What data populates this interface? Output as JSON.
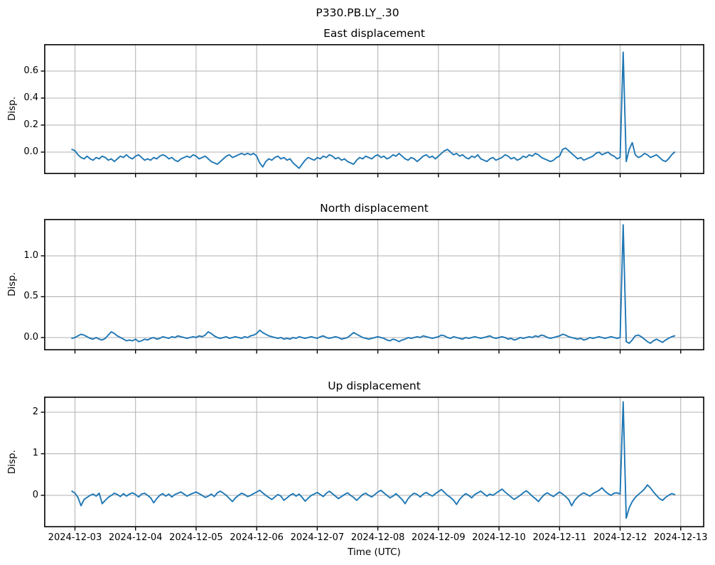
{
  "figure": {
    "suptitle": "P330.PB.LY_.30",
    "background": "#ffffff",
    "line_color": "#1f77b4",
    "grid_color": "#b0b0b0",
    "spine_color": "#000000"
  },
  "x_axis": {
    "xlabel": "Time (UTC)",
    "xlim": [
      -0.51,
      10.39
    ],
    "xticks": [
      0,
      1,
      2,
      3,
      4,
      5,
      6,
      7,
      8,
      9,
      10
    ],
    "xtick_labels": [
      "2024-12-03",
      "2024-12-04",
      "2024-12-05",
      "2024-12-06",
      "2024-12-07",
      "2024-12-08",
      "2024-12-09",
      "2024-12-10",
      "2024-12-11",
      "2024-12-12",
      "2024-12-13"
    ],
    "units": "days after 2024-12-03 00:00 UTC"
  },
  "chart_data": [
    {
      "type": "line",
      "title": "East displacement",
      "ylabel": "Disp.",
      "ylim": [
        -0.163,
        0.8
      ],
      "yticks": [
        0.0,
        0.2,
        0.4,
        0.6
      ],
      "ytick_labels": [
        "0.0",
        "0.2",
        "0.4",
        "0.6"
      ],
      "grid": true,
      "series": {
        "name": "east",
        "t0": -0.05,
        "dt_days": 0.05,
        "spike": {
          "t": 9.05,
          "value": 0.74
        },
        "values": [
          0.02,
          0.01,
          -0.02,
          -0.04,
          -0.05,
          -0.03,
          -0.05,
          -0.06,
          -0.04,
          -0.05,
          -0.03,
          -0.04,
          -0.06,
          -0.05,
          -0.07,
          -0.05,
          -0.03,
          -0.04,
          -0.02,
          -0.04,
          -0.05,
          -0.03,
          -0.02,
          -0.04,
          -0.06,
          -0.05,
          -0.06,
          -0.04,
          -0.05,
          -0.03,
          -0.02,
          -0.03,
          -0.05,
          -0.04,
          -0.06,
          -0.07,
          -0.05,
          -0.04,
          -0.03,
          -0.04,
          -0.02,
          -0.03,
          -0.05,
          -0.04,
          -0.03,
          -0.05,
          -0.07,
          -0.08,
          -0.09,
          -0.07,
          -0.05,
          -0.03,
          -0.02,
          -0.04,
          -0.03,
          -0.02,
          -0.01,
          -0.02,
          -0.01,
          -0.02,
          -0.01,
          -0.03,
          -0.08,
          -0.11,
          -0.07,
          -0.05,
          -0.06,
          -0.04,
          -0.03,
          -0.05,
          -0.04,
          -0.06,
          -0.05,
          -0.08,
          -0.1,
          -0.12,
          -0.09,
          -0.06,
          -0.04,
          -0.05,
          -0.06,
          -0.04,
          -0.05,
          -0.03,
          -0.04,
          -0.02,
          -0.03,
          -0.05,
          -0.04,
          -0.06,
          -0.05,
          -0.07,
          -0.08,
          -0.09,
          -0.06,
          -0.04,
          -0.05,
          -0.03,
          -0.04,
          -0.05,
          -0.03,
          -0.02,
          -0.04,
          -0.03,
          -0.05,
          -0.04,
          -0.02,
          -0.03,
          -0.01,
          -0.03,
          -0.05,
          -0.06,
          -0.04,
          -0.05,
          -0.07,
          -0.05,
          -0.03,
          -0.02,
          -0.04,
          -0.03,
          -0.05,
          -0.03,
          -0.01,
          0.01,
          0.02,
          0.0,
          -0.02,
          -0.01,
          -0.03,
          -0.02,
          -0.04,
          -0.05,
          -0.03,
          -0.04,
          -0.02,
          -0.05,
          -0.06,
          -0.07,
          -0.05,
          -0.04,
          -0.06,
          -0.05,
          -0.04,
          -0.02,
          -0.03,
          -0.05,
          -0.04,
          -0.06,
          -0.05,
          -0.03,
          -0.04,
          -0.02,
          -0.03,
          -0.01,
          -0.02,
          -0.04,
          -0.05,
          -0.06,
          -0.07,
          -0.06,
          -0.04,
          -0.03,
          0.02,
          0.03,
          0.01,
          -0.01,
          -0.03,
          -0.05,
          -0.04,
          -0.06,
          -0.05,
          -0.04,
          -0.03,
          -0.01,
          0.0,
          -0.02,
          -0.01,
          0.0,
          -0.02,
          -0.03,
          -0.05,
          -0.04,
          0.74,
          -0.07,
          0.02,
          0.07,
          -0.02,
          -0.04,
          -0.03,
          -0.01,
          -0.02,
          -0.04,
          -0.03,
          -0.02,
          -0.04,
          -0.06,
          -0.07,
          -0.05,
          -0.02,
          0.0
        ]
      }
    },
    {
      "type": "line",
      "title": "North displacement",
      "ylabel": "Disp.",
      "ylim": [
        -0.157,
        1.452
      ],
      "yticks": [
        0.0,
        0.5,
        1.0
      ],
      "ytick_labels": [
        "0.0",
        "0.5",
        "1.0"
      ],
      "grid": true,
      "series": {
        "name": "north",
        "t0": -0.05,
        "dt_days": 0.05,
        "spike": {
          "t": 9.05,
          "value": 1.38
        },
        "values": [
          -0.01,
          0.0,
          0.02,
          0.04,
          0.03,
          0.01,
          -0.01,
          -0.02,
          0.0,
          -0.02,
          -0.03,
          -0.01,
          0.03,
          0.07,
          0.05,
          0.02,
          0.0,
          -0.02,
          -0.04,
          -0.03,
          -0.04,
          -0.02,
          -0.05,
          -0.04,
          -0.02,
          -0.03,
          -0.01,
          0.0,
          -0.02,
          -0.01,
          0.01,
          0.0,
          -0.01,
          0.01,
          0.0,
          0.02,
          0.01,
          0.0,
          -0.01,
          0.0,
          0.01,
          0.0,
          0.02,
          0.01,
          0.03,
          0.07,
          0.05,
          0.02,
          0.0,
          -0.01,
          0.0,
          0.01,
          -0.01,
          0.0,
          0.01,
          0.0,
          -0.01,
          0.01,
          0.0,
          0.02,
          0.03,
          0.05,
          0.09,
          0.06,
          0.04,
          0.02,
          0.01,
          0.0,
          -0.01,
          0.0,
          -0.02,
          -0.01,
          -0.02,
          0.0,
          -0.01,
          0.01,
          0.0,
          -0.01,
          0.0,
          0.01,
          0.0,
          -0.01,
          0.01,
          0.02,
          0.0,
          -0.01,
          0.0,
          0.01,
          0.0,
          -0.02,
          -0.01,
          0.0,
          0.03,
          0.06,
          0.04,
          0.02,
          0.0,
          -0.01,
          -0.02,
          -0.01,
          0.0,
          0.01,
          0.0,
          -0.01,
          -0.03,
          -0.04,
          -0.02,
          -0.03,
          -0.05,
          -0.03,
          -0.02,
          0.0,
          -0.01,
          0.0,
          0.01,
          0.0,
          0.02,
          0.01,
          0.0,
          -0.01,
          0.0,
          0.01,
          0.03,
          0.02,
          0.0,
          -0.01,
          0.01,
          0.0,
          -0.01,
          -0.02,
          0.0,
          -0.01,
          0.0,
          0.01,
          0.0,
          -0.01,
          0.0,
          0.01,
          0.02,
          0.0,
          -0.01,
          0.0,
          0.01,
          0.0,
          -0.02,
          -0.01,
          -0.03,
          -0.02,
          0.0,
          -0.01,
          0.0,
          0.01,
          0.0,
          0.02,
          0.01,
          0.03,
          0.02,
          0.0,
          -0.01,
          0.0,
          0.01,
          0.02,
          0.04,
          0.03,
          0.01,
          0.0,
          -0.01,
          -0.02,
          -0.01,
          -0.03,
          -0.02,
          0.0,
          -0.01,
          0.0,
          0.01,
          0.0,
          -0.01,
          0.0,
          0.01,
          0.0,
          -0.01,
          0.0,
          1.38,
          -0.05,
          -0.07,
          -0.03,
          0.02,
          0.03,
          0.01,
          -0.02,
          -0.05,
          -0.07,
          -0.04,
          -0.02,
          -0.04,
          -0.06,
          -0.03,
          -0.01,
          0.01,
          0.02
        ]
      }
    },
    {
      "type": "line",
      "title": "Up displacement",
      "ylabel": "Disp.",
      "ylim": [
        -0.77,
        2.376
      ],
      "yticks": [
        0,
        1,
        2
      ],
      "ytick_labels": [
        "0",
        "1",
        "2"
      ],
      "grid": true,
      "series": {
        "name": "up",
        "t0": -0.05,
        "dt_days": 0.05,
        "spike": {
          "t": 9.05,
          "value": 2.25,
          "low": -0.55
        },
        "values": [
          0.1,
          0.05,
          -0.05,
          -0.25,
          -0.1,
          -0.05,
          0.0,
          0.03,
          -0.02,
          0.05,
          -0.2,
          -0.12,
          -0.05,
          0.0,
          0.05,
          0.02,
          -0.03,
          0.04,
          -0.02,
          0.03,
          0.06,
          0.02,
          -0.04,
          0.03,
          0.05,
          0.0,
          -0.06,
          -0.18,
          -0.08,
          0.0,
          0.04,
          -0.02,
          0.03,
          -0.04,
          0.02,
          0.05,
          0.08,
          0.03,
          -0.02,
          0.02,
          0.05,
          0.08,
          0.04,
          0.0,
          -0.05,
          -0.02,
          0.03,
          -0.03,
          0.06,
          0.1,
          0.05,
          0.0,
          -0.08,
          -0.15,
          -0.06,
          0.0,
          0.05,
          0.02,
          -0.03,
          0.0,
          0.04,
          0.08,
          0.12,
          0.06,
          0.0,
          -0.05,
          -0.1,
          -0.04,
          0.02,
          -0.02,
          -0.12,
          -0.06,
          0.0,
          0.04,
          -0.02,
          0.03,
          -0.05,
          -0.14,
          -0.07,
          0.0,
          0.03,
          0.07,
          0.02,
          -0.03,
          0.05,
          0.1,
          0.04,
          -0.02,
          -0.08,
          -0.03,
          0.02,
          0.06,
          0.0,
          -0.05,
          -0.12,
          -0.05,
          0.02,
          0.05,
          0.0,
          -0.04,
          0.02,
          0.08,
          0.12,
          0.06,
          0.0,
          -0.06,
          -0.02,
          0.04,
          -0.03,
          -0.1,
          -0.2,
          -0.08,
          0.0,
          0.05,
          0.02,
          -0.04,
          0.03,
          0.07,
          0.02,
          -0.02,
          0.04,
          0.09,
          0.14,
          0.07,
          0.0,
          -0.05,
          -0.12,
          -0.22,
          -0.1,
          -0.02,
          0.04,
          0.0,
          -0.06,
          0.02,
          0.06,
          0.1,
          0.04,
          -0.02,
          0.03,
          0.0,
          0.05,
          0.1,
          0.15,
          0.08,
          0.02,
          -0.04,
          -0.1,
          -0.05,
          0.0,
          0.06,
          0.11,
          0.05,
          -0.02,
          -0.08,
          -0.15,
          -0.06,
          0.02,
          0.06,
          0.01,
          -0.03,
          0.03,
          0.08,
          0.03,
          -0.03,
          -0.1,
          -0.25,
          -0.12,
          -0.04,
          0.02,
          0.06,
          0.02,
          -0.02,
          0.04,
          0.08,
          0.12,
          0.18,
          0.1,
          0.04,
          0.0,
          0.05,
          0.06,
          0.03,
          2.25,
          -0.55,
          -0.3,
          -0.15,
          -0.05,
          0.02,
          0.08,
          0.15,
          0.25,
          0.18,
          0.08,
          0.0,
          -0.08,
          -0.12,
          -0.05,
          0.0,
          0.04,
          0.02
        ]
      }
    }
  ]
}
